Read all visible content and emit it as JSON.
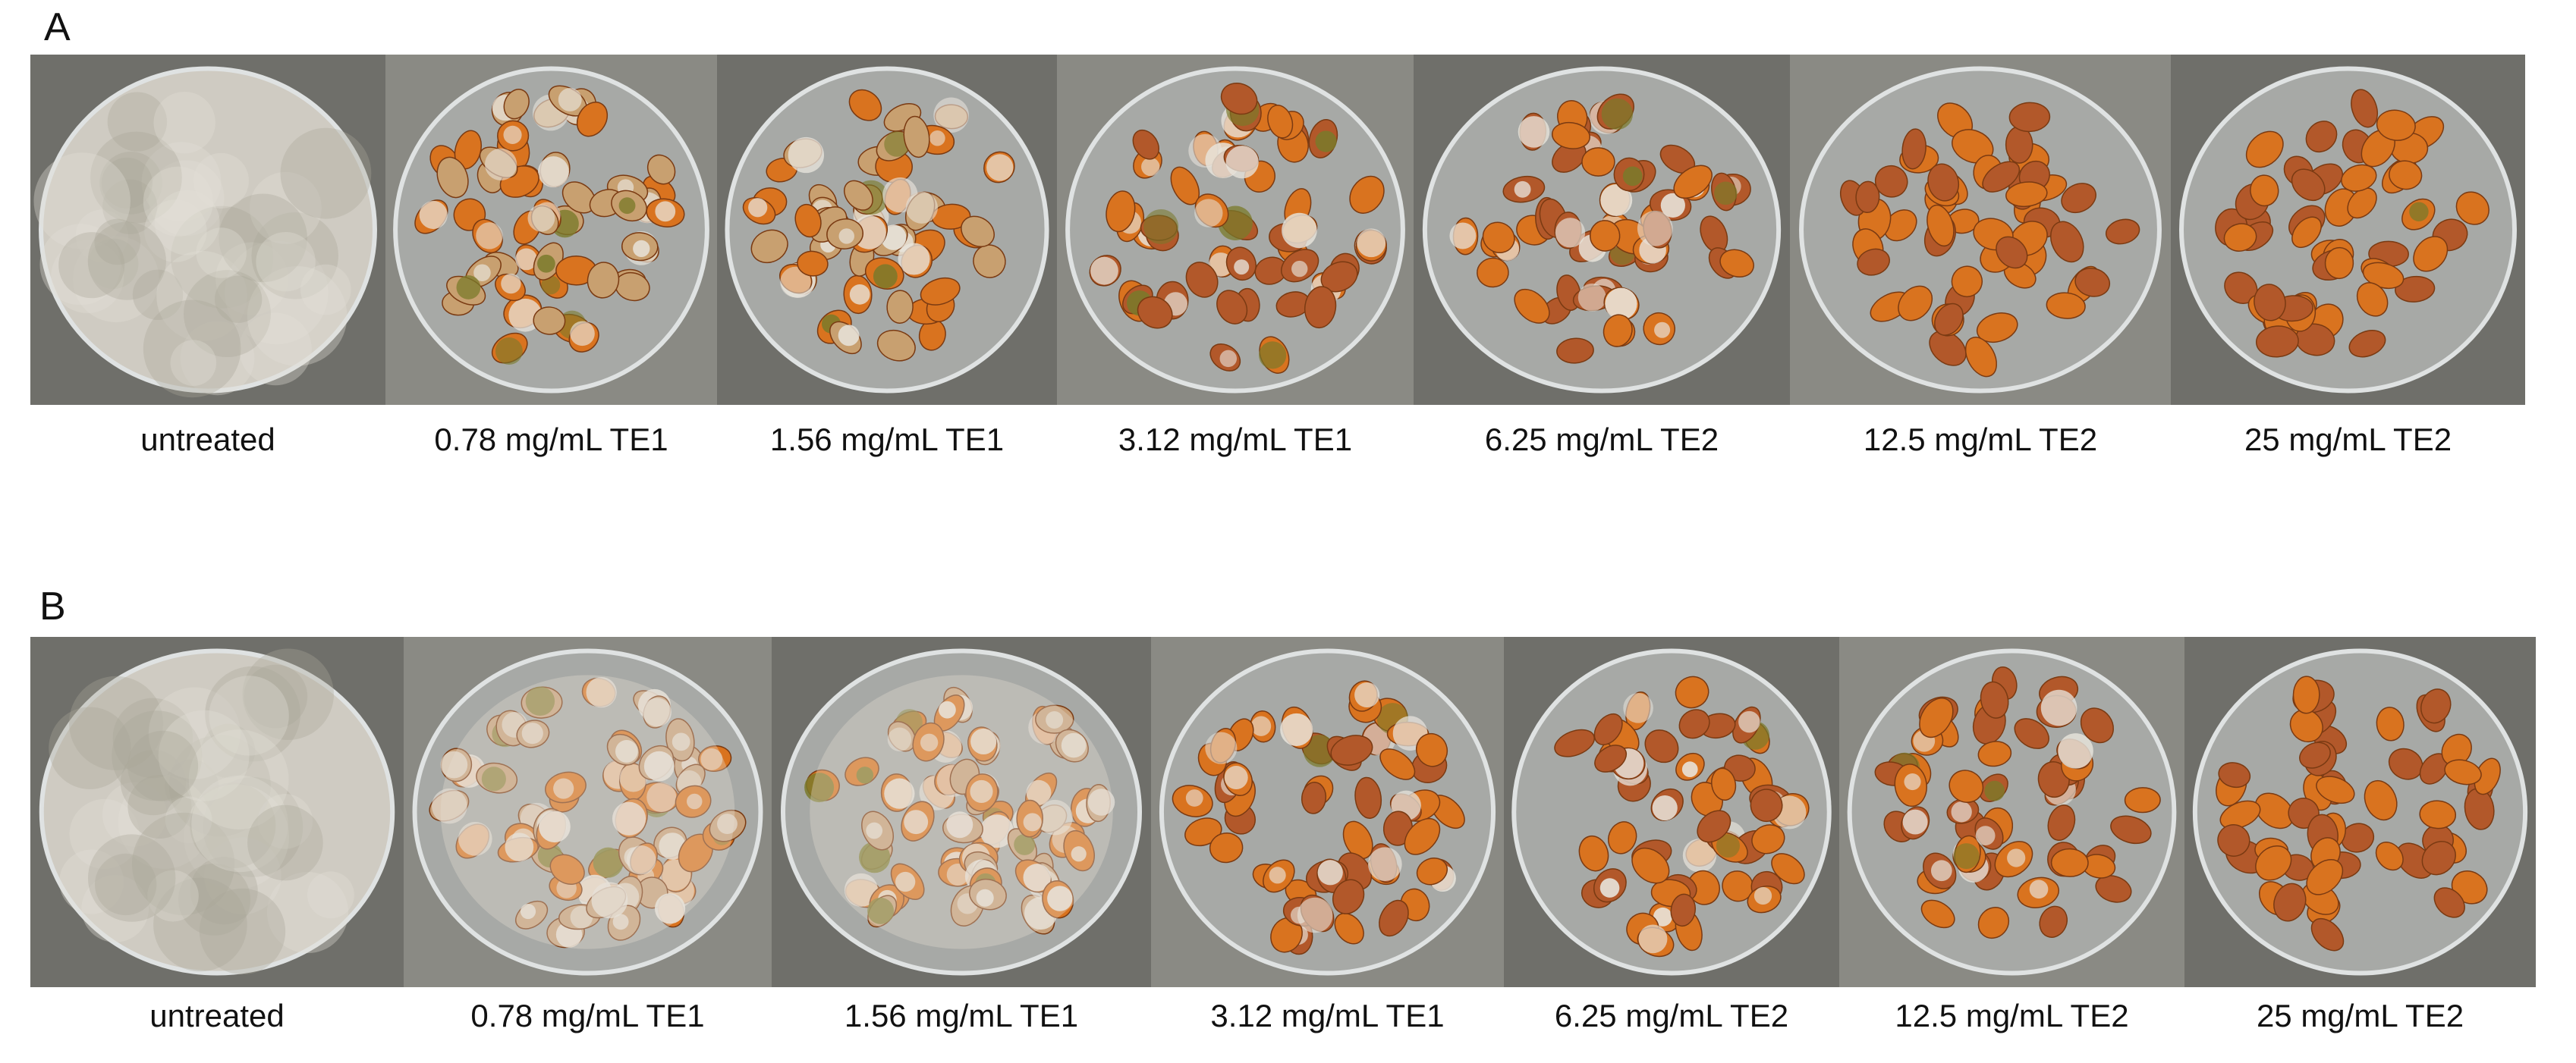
{
  "figure": {
    "panels": [
      {
        "letter": "A",
        "plates": [
          {
            "label": "untreated",
            "style": "lawn"
          },
          {
            "label": "0.78 mg/mL TE1",
            "style": "moldy-mixed"
          },
          {
            "label": "1.56 mg/mL TE1",
            "style": "moldy-mixed"
          },
          {
            "label": "3.12 mg/mL TE1",
            "style": "partial"
          },
          {
            "label": "6.25 mg/mL TE2",
            "style": "partial"
          },
          {
            "label": "12.5 mg/mL TE2",
            "style": "clean"
          },
          {
            "label": "25 mg/mL TE2",
            "style": "clean"
          }
        ]
      },
      {
        "letter": "B",
        "plates": [
          {
            "label": "untreated",
            "style": "lawn"
          },
          {
            "label": "0.78 mg/mL TE1",
            "style": "heavy"
          },
          {
            "label": "1.56 mg/mL TE1",
            "style": "heavy"
          },
          {
            "label": "3.12 mg/mL TE1",
            "style": "partial"
          },
          {
            "label": "6.25 mg/mL TE2",
            "style": "partial"
          },
          {
            "label": "12.5 mg/mL TE2",
            "style": "partial"
          },
          {
            "label": "25 mg/mL TE2",
            "style": "clean"
          }
        ]
      }
    ],
    "colors": {
      "background_metal": "#6f6f6a",
      "kernel_orange": "#d9731f",
      "kernel_brown": "#b2582a",
      "mold_white": "#e8e4dc",
      "mold_green": "#7a7a2a"
    }
  }
}
